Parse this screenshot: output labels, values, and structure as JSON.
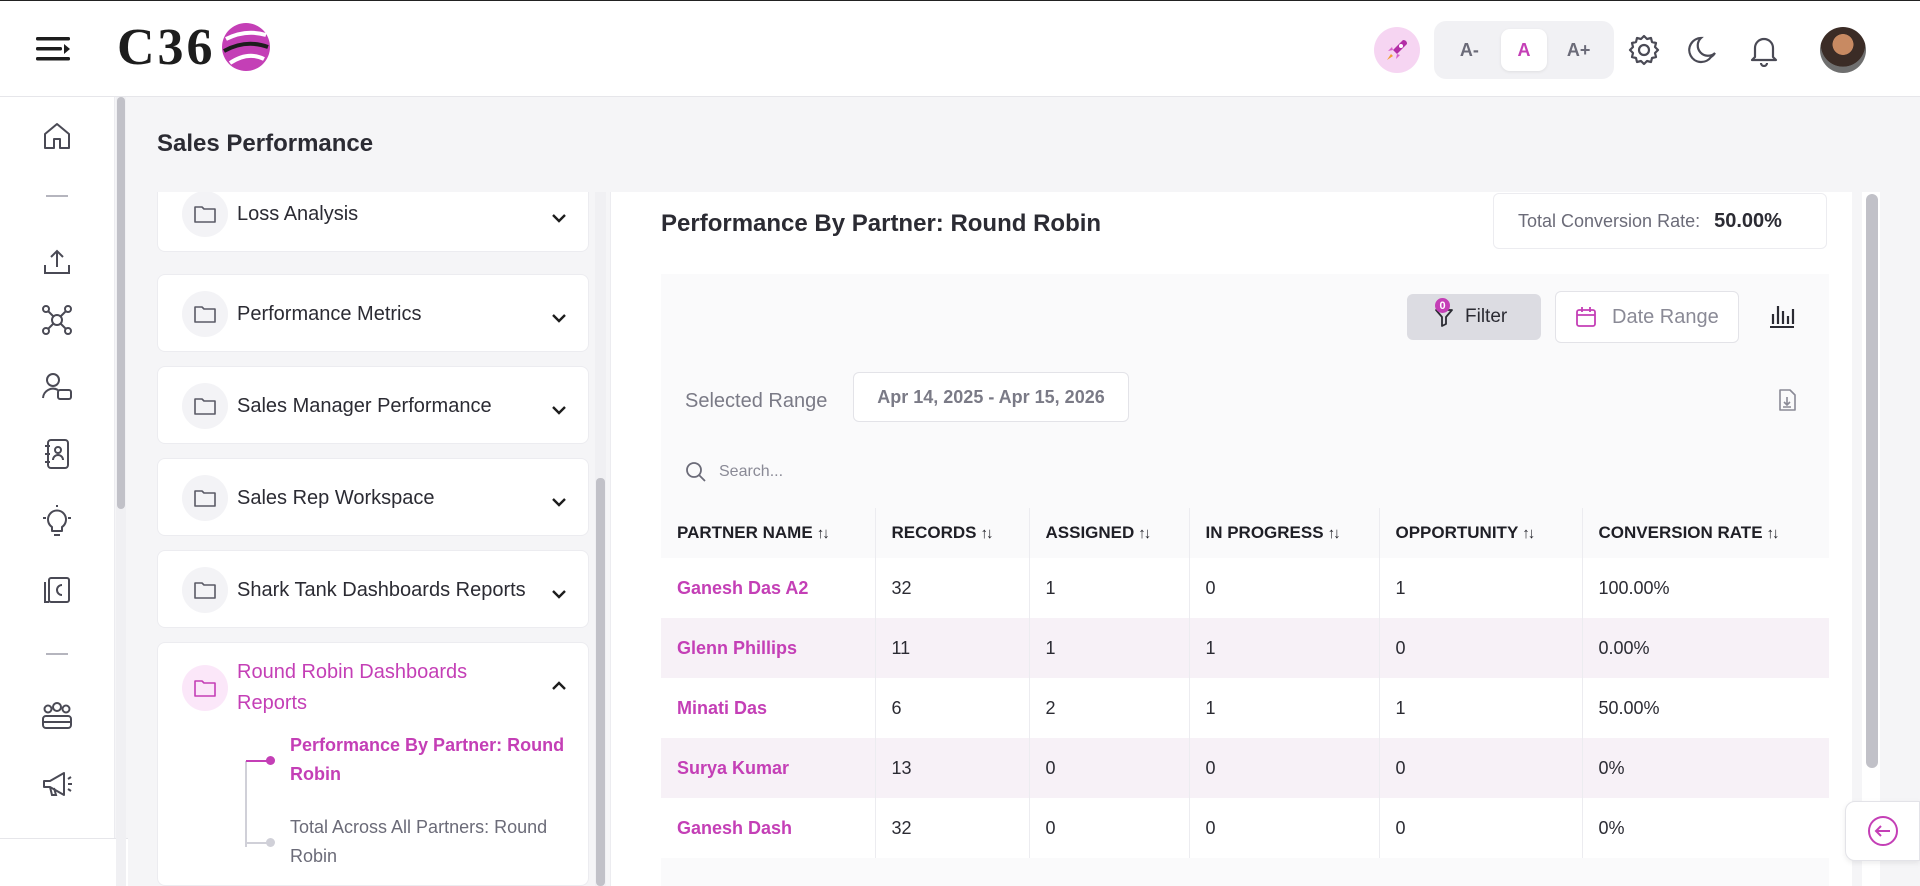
{
  "app": {
    "logo_text": "C36"
  },
  "header": {
    "font_buttons": [
      {
        "label": "A-",
        "active": false
      },
      {
        "label": "A",
        "active": true
      },
      {
        "label": "A+",
        "active": false
      }
    ],
    "icons": [
      "menu-icon",
      "rocket-icon",
      "gear-icon",
      "moon-icon",
      "bell-icon",
      "avatar"
    ]
  },
  "rail": {
    "icons": [
      "home-icon",
      "upload-icon",
      "network-icon",
      "user-card-icon",
      "contact-book-icon",
      "lightbulb-icon",
      "billing-icon",
      "team-icon",
      "megaphone-icon"
    ]
  },
  "page": {
    "title": "Sales Performance"
  },
  "sidebar": {
    "groups": [
      {
        "label": "Loss Analysis",
        "expanded": false
      },
      {
        "label": "Performance Metrics",
        "expanded": false
      },
      {
        "label": "Sales Manager Performance",
        "expanded": false
      },
      {
        "label": "Sales Rep Workspace",
        "expanded": false
      },
      {
        "label": "Shark Tank Dashboards Reports",
        "expanded": false
      },
      {
        "label": "Round Robin Dashboards Reports",
        "expanded": true
      }
    ],
    "sub_items": [
      {
        "label": "Performance By Partner: Round Robin",
        "active": true
      },
      {
        "label": "Total Across All Partners: Round Robin",
        "active": false
      }
    ]
  },
  "report": {
    "title": "Performance By Partner: Round Robin",
    "conversion_label": "Total Conversion Rate:",
    "conversion_value": "50.00%",
    "filter_label": "Filter",
    "filter_count": "0",
    "date_range_label": "Date Range",
    "selected_range_label": "Selected Range",
    "selected_range_value": "Apr 14, 2025 - Apr 15, 2026",
    "search_placeholder": "Search..."
  },
  "table": {
    "columns": [
      "PARTNER NAME",
      "RECORDS",
      "ASSIGNED",
      "IN PROGRESS",
      "OPPORTUNITY",
      "CONVERSION RATE"
    ],
    "rows": [
      [
        "Ganesh Das A2",
        "32",
        "1",
        "0",
        "1",
        "100.00%"
      ],
      [
        "Glenn Phillips",
        "11",
        "1",
        "1",
        "0",
        "0.00%"
      ],
      [
        "Minati Das",
        "6",
        "2",
        "1",
        "1",
        "50.00%"
      ],
      [
        "Surya Kumar",
        "13",
        "0",
        "0",
        "0",
        "0%"
      ],
      [
        "Ganesh Dash",
        "32",
        "0",
        "0",
        "0",
        "0%"
      ]
    ]
  },
  "colors": {
    "accent": "#c43fb6",
    "accent_soft": "#fbe7f9"
  }
}
